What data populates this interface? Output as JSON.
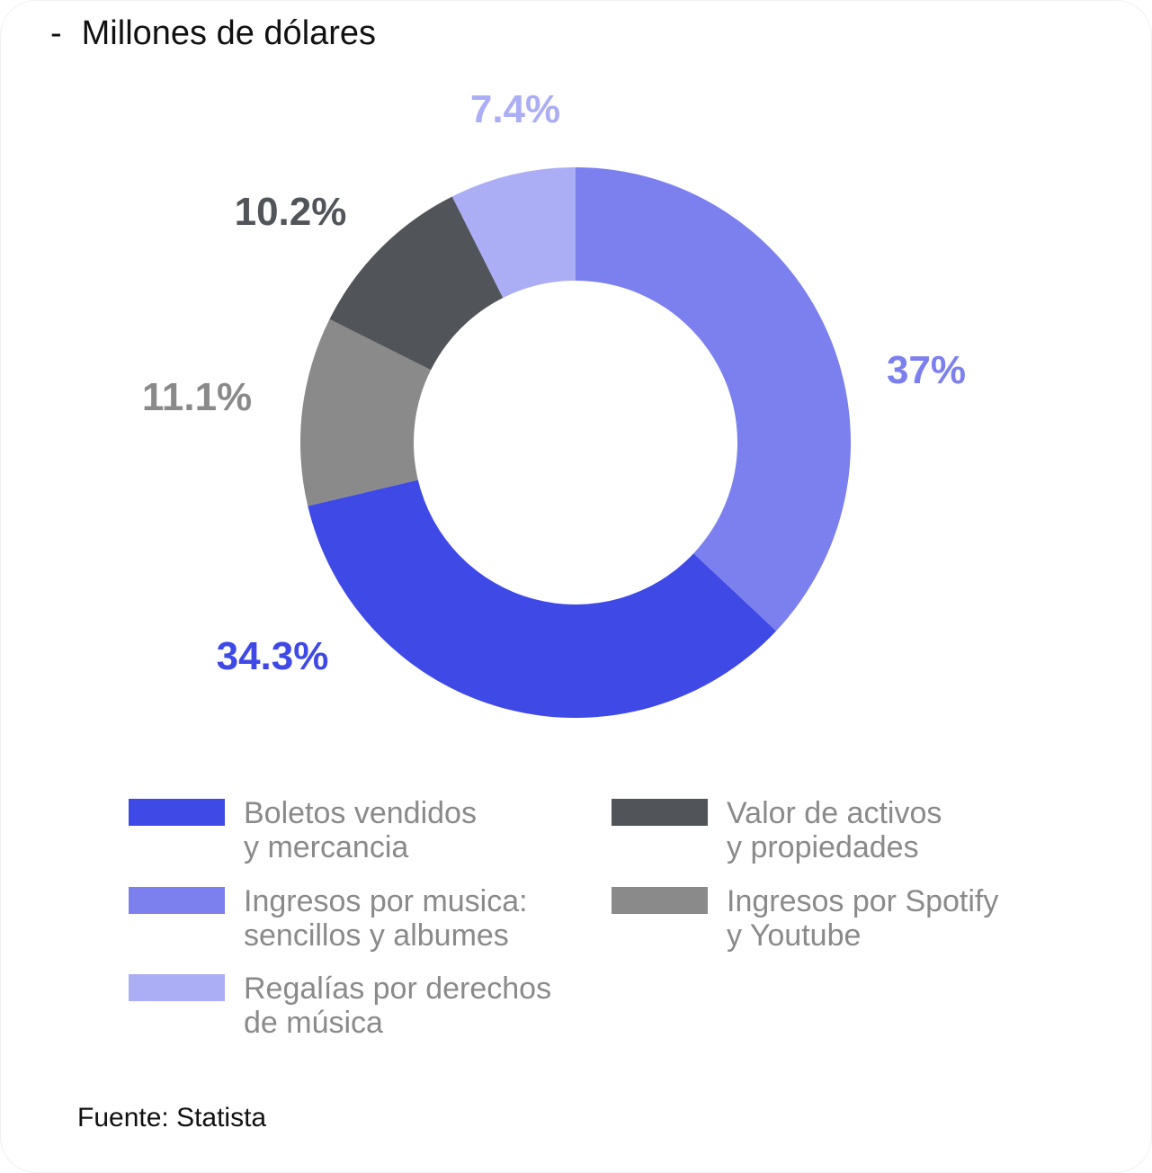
{
  "title": {
    "dash": "-",
    "text": "Millones de dólares"
  },
  "chart_data": {
    "type": "pie",
    "donut": true,
    "start": "top",
    "direction": "clockwise",
    "slices": [
      {
        "label": "Ingresos por musica: sencillos y albumes",
        "value": 37,
        "display": "37%",
        "color": "#7b80ee"
      },
      {
        "label": "Boletos vendidos y mercancia",
        "value": 34.3,
        "display": "34.3%",
        "color": "#3f49e6"
      },
      {
        "label": "Ingresos por Spotify y Youtube",
        "value": 11.1,
        "display": "11.1%",
        "color": "#8a8a8a"
      },
      {
        "label": "Valor de activos y propiedades",
        "value": 10.2,
        "display": "10.2%",
        "color": "#515459"
      },
      {
        "label": "Regalías por derechos de música",
        "value": 7.4,
        "display": "7.4%",
        "color": "#abaef4"
      }
    ],
    "legend": [
      {
        "line1": "Boletos vendidos",
        "line2": "y mercancia",
        "color": "#3f49e6"
      },
      {
        "line1": "Ingresos por musica:",
        "line2": "sencillos y albumes",
        "color": "#7b80ee"
      },
      {
        "line1": "Ingresos por Spotify",
        "line2": "y Youtube",
        "color": "#8a8a8a"
      },
      {
        "line1": "Valor de activos",
        "line2": "y propiedades",
        "color": "#515459"
      },
      {
        "line1": "Regalías por derechos",
        "line2": "de música",
        "color": "#abaef4"
      }
    ],
    "legend_placement": "bottom"
  },
  "source": "Fuente: Statista"
}
